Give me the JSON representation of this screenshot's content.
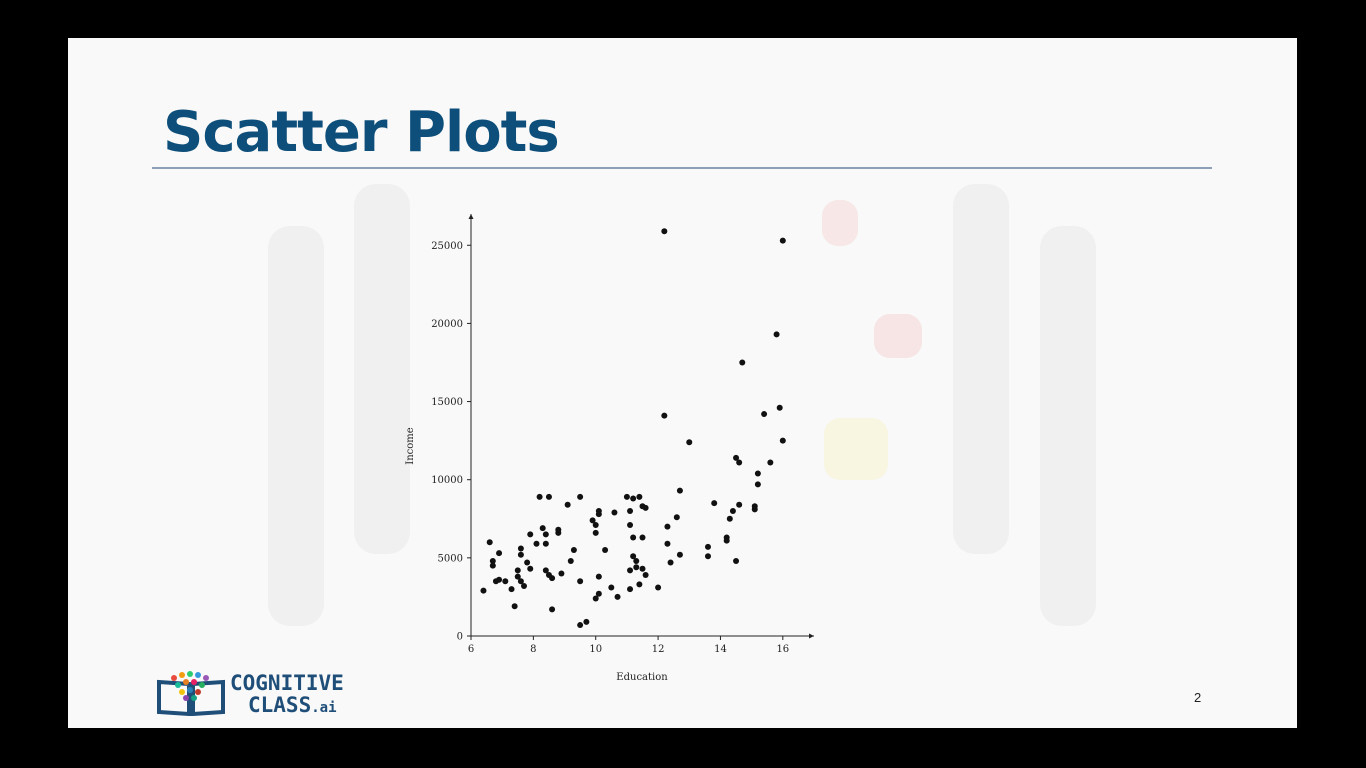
{
  "slide": {
    "title": "Scatter Plots",
    "page_number": "2"
  },
  "logo": {
    "line1": "COGNITIVE",
    "line2": "CLASS",
    "suffix": ".ai"
  },
  "chart_data": {
    "type": "scatter",
    "title": "",
    "xlabel": "Education",
    "ylabel": "Income",
    "xlim": [
      6,
      17
    ],
    "ylim": [
      0,
      27000
    ],
    "xticks": [
      6,
      8,
      10,
      12,
      14,
      16
    ],
    "yticks": [
      0,
      5000,
      10000,
      15000,
      20000,
      25000
    ],
    "grid": false,
    "points": [
      [
        6.4,
        2900
      ],
      [
        6.6,
        6000
      ],
      [
        6.7,
        4800
      ],
      [
        6.7,
        4500
      ],
      [
        6.8,
        3500
      ],
      [
        6.9,
        3600
      ],
      [
        6.9,
        5300
      ],
      [
        7.1,
        3500
      ],
      [
        7.3,
        3000
      ],
      [
        7.4,
        1900
      ],
      [
        7.5,
        4200
      ],
      [
        7.5,
        3800
      ],
      [
        7.6,
        5600
      ],
      [
        7.6,
        5200
      ],
      [
        7.6,
        3500
      ],
      [
        7.7,
        3200
      ],
      [
        7.8,
        4700
      ],
      [
        7.9,
        4300
      ],
      [
        7.9,
        6500
      ],
      [
        8.1,
        5900
      ],
      [
        8.2,
        8900
      ],
      [
        8.3,
        6900
      ],
      [
        8.4,
        6500
      ],
      [
        8.4,
        5900
      ],
      [
        8.4,
        4200
      ],
      [
        8.5,
        3900
      ],
      [
        8.5,
        8900
      ],
      [
        8.6,
        3700
      ],
      [
        8.6,
        1700
      ],
      [
        8.8,
        6600
      ],
      [
        8.8,
        6800
      ],
      [
        8.9,
        4000
      ],
      [
        9.1,
        8400
      ],
      [
        9.2,
        4800
      ],
      [
        9.3,
        5500
      ],
      [
        9.5,
        8900
      ],
      [
        9.5,
        3500
      ],
      [
        9.5,
        700
      ],
      [
        9.7,
        900
      ],
      [
        9.9,
        7400
      ],
      [
        10.0,
        2400
      ],
      [
        10.0,
        7100
      ],
      [
        10.0,
        6600
      ],
      [
        10.1,
        7800
      ],
      [
        10.1,
        8000
      ],
      [
        10.1,
        3800
      ],
      [
        10.1,
        2700
      ],
      [
        10.3,
        5500
      ],
      [
        10.5,
        3100
      ],
      [
        10.6,
        7900
      ],
      [
        10.7,
        2500
      ],
      [
        11.0,
        8900
      ],
      [
        11.1,
        4200
      ],
      [
        11.1,
        3000
      ],
      [
        11.1,
        8000
      ],
      [
        11.1,
        7100
      ],
      [
        11.2,
        8800
      ],
      [
        11.2,
        6300
      ],
      [
        11.2,
        5100
      ],
      [
        11.3,
        4800
      ],
      [
        11.3,
        4400
      ],
      [
        11.4,
        3300
      ],
      [
        11.4,
        8900
      ],
      [
        11.5,
        6300
      ],
      [
        11.5,
        4300
      ],
      [
        11.5,
        8300
      ],
      [
        11.6,
        3900
      ],
      [
        11.6,
        8200
      ],
      [
        12.0,
        3100
      ],
      [
        12.2,
        25900
      ],
      [
        12.2,
        14100
      ],
      [
        12.3,
        7000
      ],
      [
        12.3,
        5900
      ],
      [
        12.4,
        4700
      ],
      [
        12.6,
        7600
      ],
      [
        12.7,
        9300
      ],
      [
        12.7,
        5200
      ],
      [
        13.0,
        12400
      ],
      [
        13.6,
        5700
      ],
      [
        13.6,
        5100
      ],
      [
        13.8,
        8500
      ],
      [
        14.2,
        6300
      ],
      [
        14.2,
        6100
      ],
      [
        14.3,
        7500
      ],
      [
        14.4,
        8000
      ],
      [
        14.5,
        11400
      ],
      [
        14.5,
        4800
      ],
      [
        14.6,
        8400
      ],
      [
        14.6,
        11100
      ],
      [
        14.7,
        17500
      ],
      [
        15.1,
        8300
      ],
      [
        15.1,
        8100
      ],
      [
        15.2,
        10400
      ],
      [
        15.2,
        9700
      ],
      [
        15.4,
        14200
      ],
      [
        15.6,
        11100
      ],
      [
        15.8,
        19300
      ],
      [
        15.9,
        14600
      ],
      [
        16.0,
        12500
      ],
      [
        16.0,
        25300
      ]
    ]
  }
}
